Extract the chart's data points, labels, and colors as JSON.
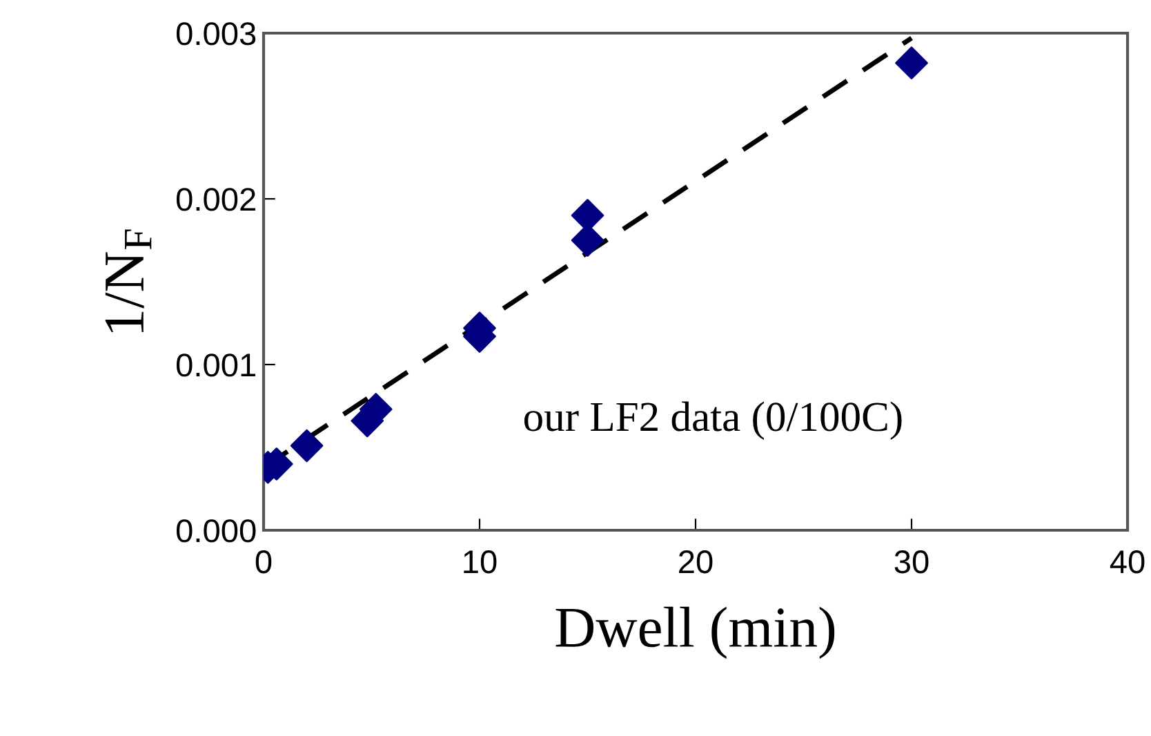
{
  "chart_data": {
    "type": "scatter",
    "xlabel": "Dwell (min)",
    "ylabel": "1/N$_{F}$",
    "xlim": [
      0,
      40
    ],
    "xticks": [
      0,
      10,
      20,
      30,
      40
    ],
    "ylim": [
      0,
      0.003
    ],
    "yticks": [
      {
        "value": 0,
        "label": "0.000"
      },
      {
        "value": 0.001,
        "label": "0.001"
      },
      {
        "value": 0.002,
        "label": "0.002"
      },
      {
        "value": 0.003,
        "label": "0.003"
      }
    ],
    "grid": false,
    "legend": false,
    "marker": "diamond",
    "annotations": [
      "our LF2 data (0/100C)"
    ],
    "series": [
      {
        "color": "#000080",
        "x": [
          0.2,
          0.6,
          2,
          4.8,
          5.2,
          10,
          10,
          15,
          15,
          30
        ],
        "values": [
          0.00038,
          0.0004,
          0.00051,
          0.00066,
          0.00073,
          0.00122,
          0.00117,
          0.0019,
          0.00175,
          0.00282
        ]
      },
      {
        "type": "line",
        "color": "#000000",
        "line_style": "dashed",
        "marker": "none",
        "x": [
          0,
          30
        ],
        "values": [
          0.00038,
          0.00297
        ]
      }
    ]
  }
}
